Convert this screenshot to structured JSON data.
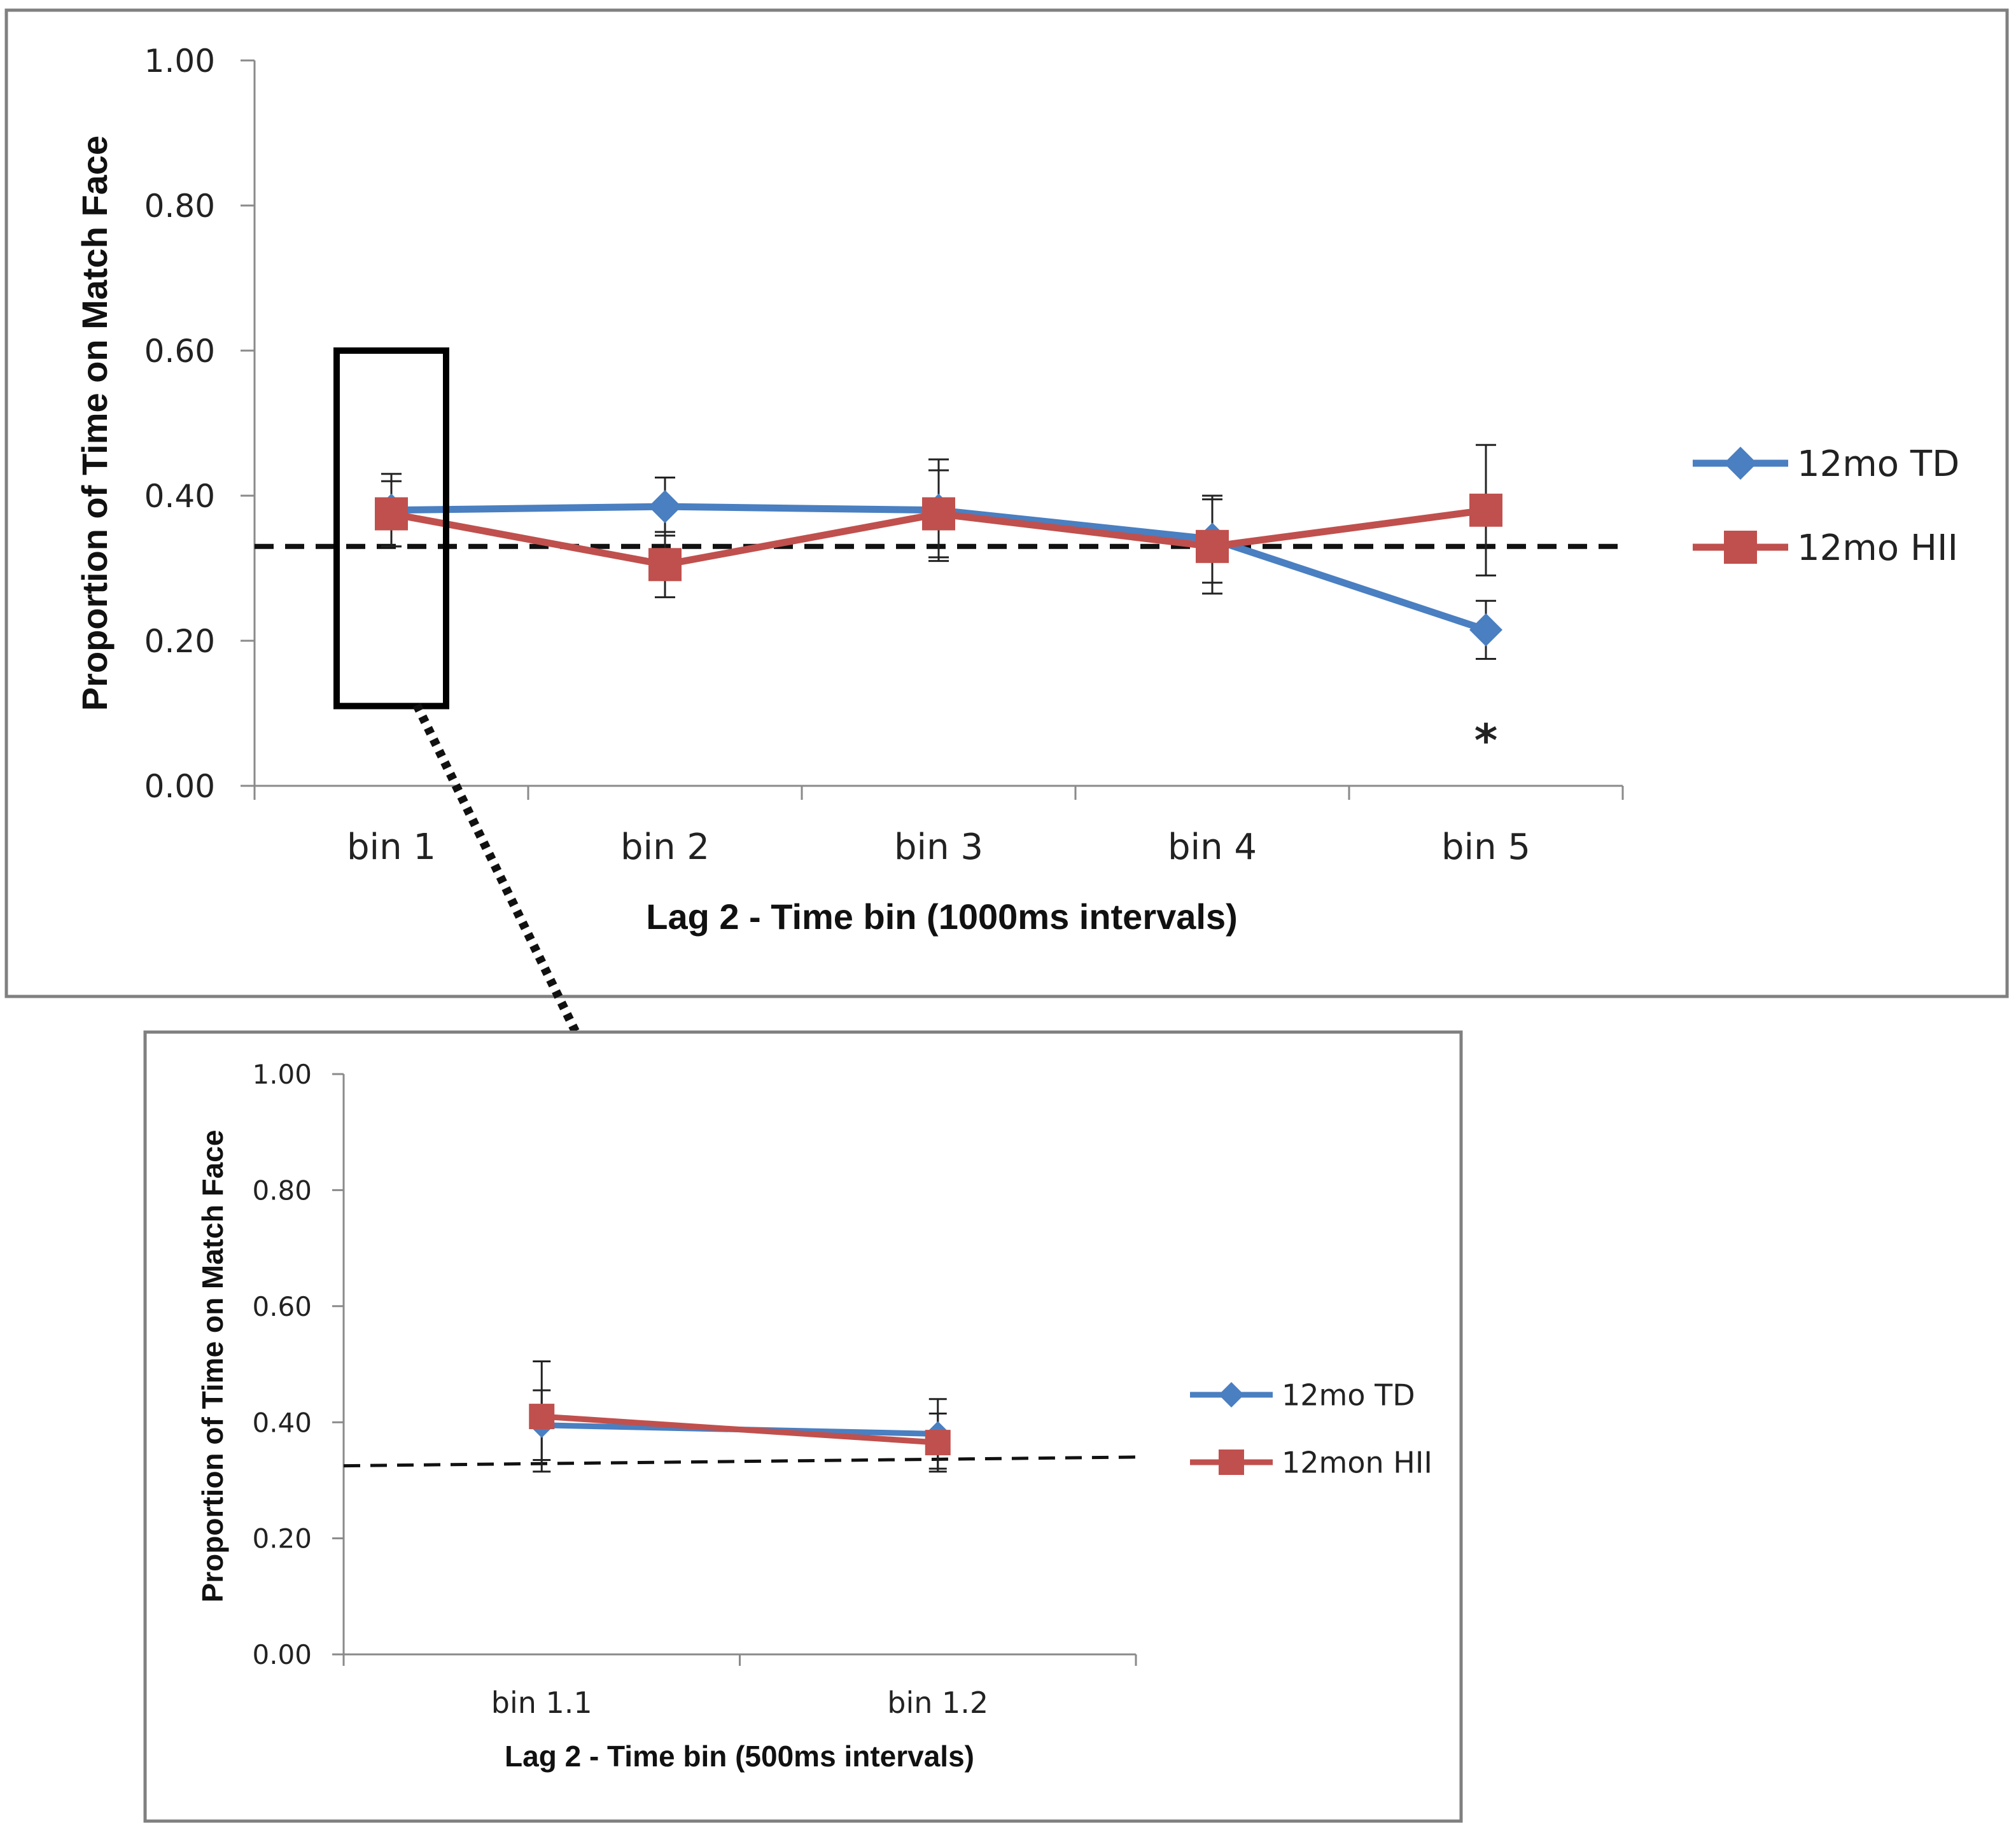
{
  "chart_data": [
    {
      "type": "line",
      "categories": [
        "bin 1",
        "bin 2",
        "bin 3",
        "bin 4",
        "bin 5"
      ],
      "xlabel": "Lag 2  - Time bin (1000ms intervals)",
      "ylabel": "Proportion of Time on Match Face",
      "ylim": [
        0,
        1
      ],
      "yticks": [
        "0.00",
        "0.20",
        "0.40",
        "0.60",
        "0.80",
        "1.00"
      ],
      "reference_line": {
        "y": 0.33,
        "style": "dashed"
      },
      "annotations": [
        {
          "text": "*",
          "category": "bin 5"
        }
      ],
      "highlight_box": {
        "category": "bin 1",
        "range": [
          0.11,
          0.6
        ]
      },
      "legend_position": "right",
      "grid": false,
      "series": [
        {
          "name": "12mo TD",
          "color": "#4a7fc1",
          "marker": "diamond",
          "values": [
            0.38,
            0.385,
            0.38,
            0.34,
            0.215
          ],
          "errors": [
            0.05,
            0.04,
            0.07,
            0.06,
            0.04
          ]
        },
        {
          "name": "12mo HII",
          "color": "#c0504d",
          "marker": "square",
          "values": [
            0.375,
            0.305,
            0.375,
            0.33,
            0.38
          ],
          "errors": [
            0.045,
            0.045,
            0.06,
            0.065,
            0.09
          ]
        }
      ]
    },
    {
      "type": "line",
      "categories": [
        "bin 1.1",
        "bin 1.2"
      ],
      "xlabel": "Lag 2  - Time bin (500ms intervals)",
      "ylabel": "Proportion of Time on Match Face",
      "ylim": [
        0,
        1
      ],
      "yticks": [
        "0.00",
        "0.20",
        "0.40",
        "0.60",
        "0.80",
        "1.00"
      ],
      "reference_line": {
        "y_start": 0.325,
        "y_end": 0.34,
        "style": "dashed"
      },
      "legend_position": "right",
      "grid": false,
      "series": [
        {
          "name": "12mo TD",
          "color": "#4a7fc1",
          "marker": "diamond",
          "values": [
            0.395,
            0.38
          ],
          "errors": [
            0.06,
            0.06
          ]
        },
        {
          "name": "12mon HII",
          "color": "#c0504d",
          "marker": "square",
          "values": [
            0.41,
            0.365
          ],
          "errors": [
            0.095,
            0.05
          ]
        }
      ]
    }
  ]
}
